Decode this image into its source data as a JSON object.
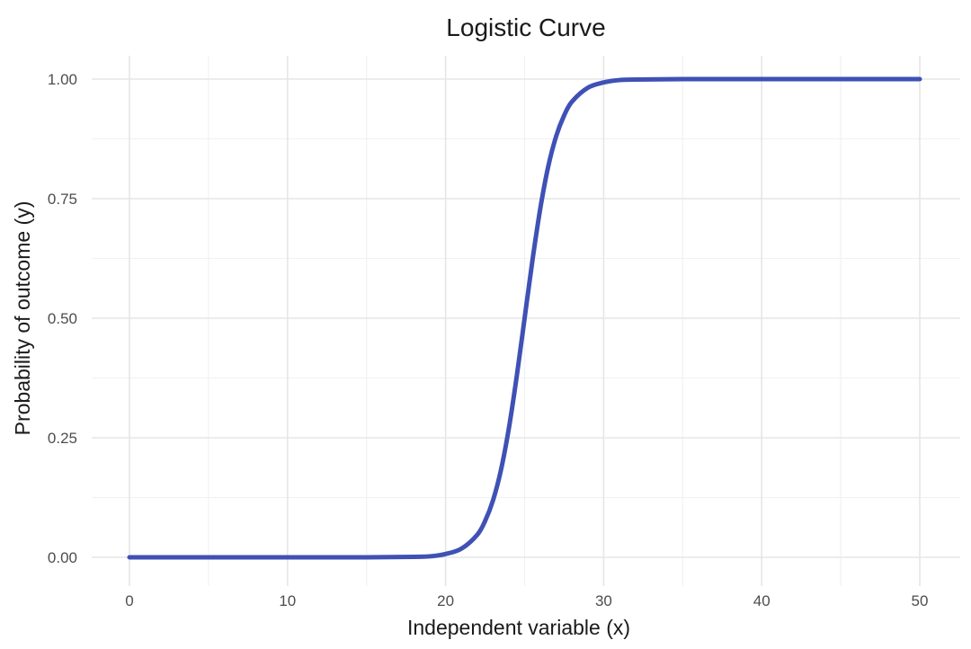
{
  "chart_data": {
    "type": "line",
    "title": "Logistic Curve",
    "xlabel": "Independent variable (x)",
    "ylabel": "Probability of outcome (y)",
    "xlim": [
      0,
      50
    ],
    "ylim": [
      0,
      1
    ],
    "x_ticks": [
      0,
      10,
      20,
      30,
      40,
      50
    ],
    "x_tick_labels": [
      "0",
      "10",
      "20",
      "30",
      "40",
      "50"
    ],
    "y_ticks": [
      0,
      0.25,
      0.5,
      0.75,
      1
    ],
    "y_tick_labels": [
      "0.00",
      "0.25",
      "0.50",
      "0.75",
      "1.00"
    ],
    "grid": true,
    "series": [
      {
        "color": "#3f51b5",
        "x": [
          0,
          5,
          10,
          15,
          18,
          19,
          20,
          21,
          22,
          22.5,
          23,
          23.5,
          24,
          24.5,
          25,
          25.5,
          26,
          26.5,
          27,
          27.5,
          28,
          29,
          30,
          31,
          32,
          35,
          40,
          45,
          50
        ],
        "y": [
          0.0,
          0.0,
          0.0,
          0.0,
          0.001,
          0.002,
          0.007,
          0.018,
          0.047,
          0.076,
          0.119,
          0.182,
          0.269,
          0.378,
          0.5,
          0.622,
          0.731,
          0.818,
          0.881,
          0.924,
          0.953,
          0.982,
          0.993,
          0.998,
          0.999,
          1.0,
          1.0,
          1.0,
          1.0
        ]
      }
    ]
  }
}
